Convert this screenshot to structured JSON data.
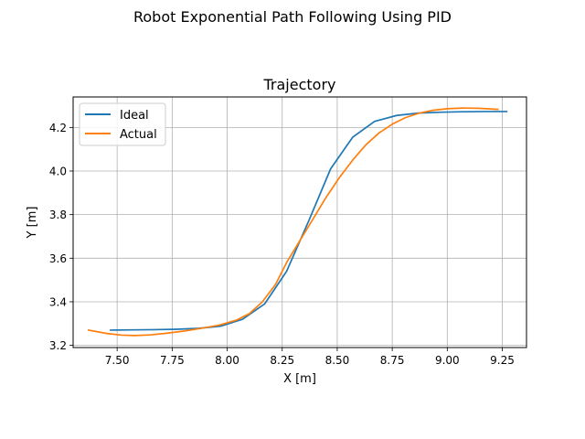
{
  "figure": {
    "suptitle": "Robot Exponential Path Following Using PID"
  },
  "chart_data": {
    "type": "line",
    "title": "Trajectory",
    "xlabel": "X [m]",
    "ylabel": "Y [m]",
    "xlim": [
      7.3,
      9.36
    ],
    "ylim": [
      3.19,
      4.34
    ],
    "xticks": [
      7.5,
      7.75,
      8.0,
      8.25,
      8.5,
      8.75,
      9.0,
      9.25
    ],
    "xtick_labels": [
      "7.50",
      "7.75",
      "8.00",
      "8.25",
      "8.50",
      "8.75",
      "9.00",
      "9.25"
    ],
    "yticks": [
      3.2,
      3.4,
      3.6,
      3.8,
      4.0,
      4.2
    ],
    "ytick_labels": [
      "3.2",
      "3.4",
      "3.6",
      "3.8",
      "4.0",
      "4.2"
    ],
    "grid": true,
    "legend_position": "upper-left",
    "series": [
      {
        "name": "Ideal",
        "color": "#1f77b4",
        "x": [
          7.47,
          7.57,
          7.67,
          7.77,
          7.87,
          7.97,
          8.07,
          8.17,
          8.27,
          8.37,
          8.47,
          8.57,
          8.67,
          8.77,
          8.87,
          8.97,
          9.07,
          9.17,
          9.27
        ],
        "y": [
          3.27,
          3.271,
          3.272,
          3.274,
          3.278,
          3.288,
          3.32,
          3.39,
          3.54,
          3.77,
          4.01,
          4.155,
          4.228,
          4.255,
          4.266,
          4.27,
          4.272,
          4.273,
          4.273
        ]
      },
      {
        "name": "Actual",
        "color": "#ff7f0e",
        "x": [
          7.37,
          7.45,
          7.52,
          7.58,
          7.65,
          7.72,
          7.8,
          7.88,
          7.96,
          8.04,
          8.1,
          8.16,
          8.22,
          8.27,
          8.33,
          8.39,
          8.45,
          8.51,
          8.57,
          8.63,
          8.69,
          8.75,
          8.81,
          8.87,
          8.93,
          9.0,
          9.07,
          9.14,
          9.23
        ],
        "y": [
          3.27,
          3.255,
          3.247,
          3.245,
          3.248,
          3.255,
          3.265,
          3.278,
          3.292,
          3.315,
          3.345,
          3.4,
          3.48,
          3.58,
          3.68,
          3.78,
          3.88,
          3.97,
          4.05,
          4.12,
          4.175,
          4.215,
          4.245,
          4.265,
          4.278,
          4.286,
          4.289,
          4.288,
          4.283
        ]
      }
    ]
  }
}
